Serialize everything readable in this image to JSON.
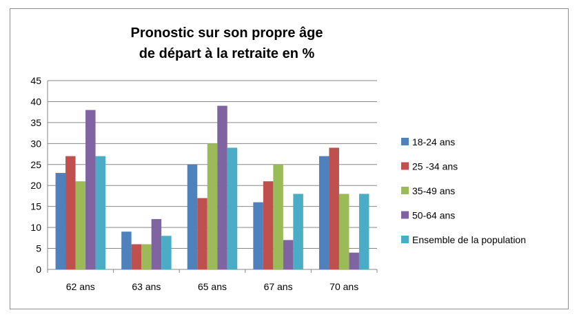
{
  "chart_data": {
    "type": "bar",
    "title": "Pronostic sur son propre âge de départ à la retraite en %",
    "title_lines": [
      "Pronostic sur son propre âge",
      "de départ à la retraite en %"
    ],
    "xlabel": "",
    "ylabel": "",
    "categories": [
      "62 ans",
      "63 ans",
      "65 ans",
      "67 ans",
      "70 ans"
    ],
    "ylim": [
      0,
      45
    ],
    "yticks": [
      0,
      5,
      10,
      15,
      20,
      25,
      30,
      35,
      40,
      45
    ],
    "grid": true,
    "legend_position": "right",
    "series": [
      {
        "name": "18-24 ans",
        "color": "#4f81bd",
        "values": [
          23,
          9,
          25,
          16,
          27
        ]
      },
      {
        "name": "25 -34 ans",
        "color": "#c0504d",
        "values": [
          27,
          6,
          17,
          21,
          29
        ]
      },
      {
        "name": "35-49 ans",
        "color": "#9bbb59",
        "values": [
          21,
          6,
          30,
          25,
          18
        ]
      },
      {
        "name": "50-64 ans",
        "color": "#8064a2",
        "values": [
          38,
          12,
          39,
          7,
          4
        ]
      },
      {
        "name": "Ensemble de la population",
        "color": "#4bacc6",
        "values": [
          27,
          8,
          29,
          18,
          18
        ]
      }
    ]
  }
}
